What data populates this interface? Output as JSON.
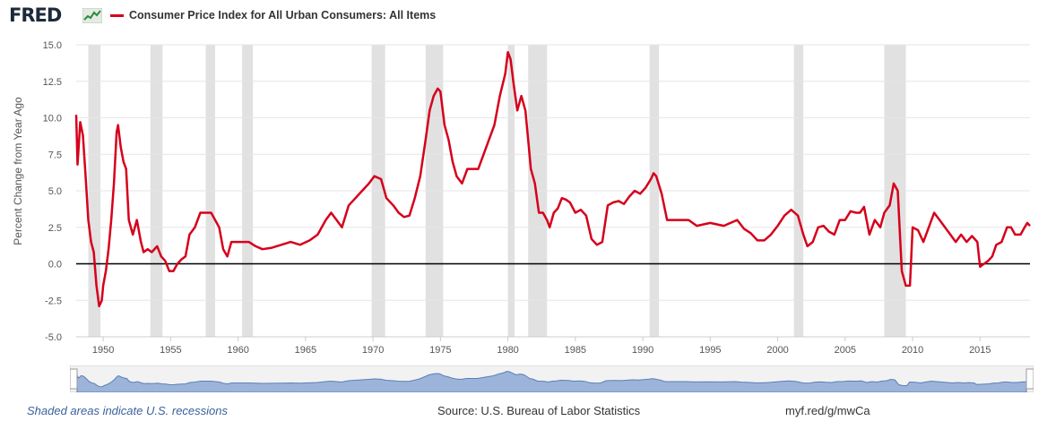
{
  "header": {
    "logo_text": "FRED",
    "title": "Consumer Price Index for All Urban Consumers: All Items"
  },
  "footer": {
    "recession_note": "Shaded areas indicate U.S. recessions",
    "source": "Source: U.S. Bureau of Labor Statistics",
    "short_link": "myf.red/g/mwCa"
  },
  "colors": {
    "series": "#d6001c",
    "recession": "#e1e1e1",
    "navigator_fill": "#7f9fd0"
  },
  "chart_data": {
    "type": "line",
    "title": "Consumer Price Index for All Urban Consumers: All Items",
    "ylabel": "Percent Change from Year Ago",
    "xlabel": "",
    "ylim": [
      -5.0,
      15.0
    ],
    "xlim": [
      1948.0,
      2018.7
    ],
    "yticks": [
      "-5.0",
      "-2.5",
      "0.0",
      "2.5",
      "5.0",
      "7.5",
      "10.0",
      "12.5",
      "15.0"
    ],
    "xticks": [
      "1950",
      "1955",
      "1960",
      "1965",
      "1970",
      "1975",
      "1980",
      "1985",
      "1990",
      "1995",
      "2000",
      "2005",
      "2010",
      "2015"
    ],
    "grid": true,
    "recessions": [
      [
        1948.9,
        1949.8
      ],
      [
        1953.5,
        1954.4
      ],
      [
        1957.6,
        1958.3
      ],
      [
        1960.3,
        1961.1
      ],
      [
        1969.9,
        1970.9
      ],
      [
        1973.9,
        1975.2
      ],
      [
        1980.0,
        1980.5
      ],
      [
        1981.5,
        1982.9
      ],
      [
        1990.5,
        1991.2
      ],
      [
        2001.2,
        2001.9
      ],
      [
        2007.9,
        2009.5
      ]
    ],
    "series": [
      {
        "name": "Consumer Price Index for All Urban Consumers: All Items",
        "x": [
          1948.0,
          1948.1,
          1948.3,
          1948.5,
          1948.7,
          1948.9,
          1949.1,
          1949.3,
          1949.5,
          1949.7,
          1949.9,
          1950.0,
          1950.2,
          1950.4,
          1950.6,
          1950.8,
          1951.0,
          1951.1,
          1951.3,
          1951.5,
          1951.7,
          1951.9,
          1952.2,
          1952.5,
          1952.8,
          1953.0,
          1953.3,
          1953.6,
          1954.0,
          1954.3,
          1954.6,
          1954.9,
          1955.2,
          1955.5,
          1955.8,
          1956.1,
          1956.4,
          1956.8,
          1957.2,
          1957.6,
          1958.0,
          1958.3,
          1958.6,
          1958.9,
          1959.2,
          1959.5,
          1959.8,
          1960.3,
          1960.8,
          1961.3,
          1961.8,
          1962.5,
          1963.2,
          1963.9,
          1964.6,
          1965.3,
          1965.9,
          1966.5,
          1966.9,
          1967.3,
          1967.7,
          1968.2,
          1968.7,
          1969.2,
          1969.7,
          1970.1,
          1970.6,
          1971.0,
          1971.5,
          1971.9,
          1972.3,
          1972.7,
          1973.1,
          1973.5,
          1973.9,
          1974.2,
          1974.5,
          1974.8,
          1975.0,
          1975.3,
          1975.6,
          1975.9,
          1976.2,
          1976.6,
          1977.0,
          1977.4,
          1977.8,
          1978.2,
          1978.6,
          1979.0,
          1979.4,
          1979.8,
          1980.0,
          1980.2,
          1980.4,
          1980.7,
          1981.0,
          1981.3,
          1981.5,
          1981.7,
          1982.0,
          1982.3,
          1982.6,
          1982.9,
          1983.1,
          1983.4,
          1983.7,
          1984.0,
          1984.3,
          1984.6,
          1985.0,
          1985.4,
          1985.8,
          1986.2,
          1986.6,
          1987.0,
          1987.4,
          1987.8,
          1988.2,
          1988.6,
          1989.0,
          1989.4,
          1989.8,
          1990.2,
          1990.6,
          1990.8,
          1991.0,
          1991.4,
          1991.8,
          1992.2,
          1992.8,
          1993.4,
          1994.0,
          1995.0,
          1996.0,
          1997.0,
          1997.5,
          1998.0,
          1998.5,
          1999.0,
          1999.5,
          2000.0,
          2000.5,
          2001.0,
          2001.5,
          2001.9,
          2002.2,
          2002.6,
          2003.0,
          2003.4,
          2003.8,
          2004.2,
          2004.6,
          2005.0,
          2005.4,
          2005.8,
          2006.1,
          2006.4,
          2006.8,
          2007.2,
          2007.6,
          2007.9,
          2008.3,
          2008.6,
          2008.9,
          2009.2,
          2009.5,
          2009.8,
          2010.0,
          2010.4,
          2010.8,
          2011.2,
          2011.6,
          2012.0,
          2012.4,
          2012.8,
          2013.2,
          2013.6,
          2014.0,
          2014.4,
          2014.8,
          2015.0,
          2015.3,
          2015.6,
          2015.9,
          2016.2,
          2016.6,
          2017.0,
          2017.3,
          2017.6,
          2018.0,
          2018.3,
          2018.5,
          2018.7
        ],
        "values": [
          10.2,
          6.8,
          9.7,
          8.8,
          6.0,
          3.0,
          1.5,
          0.8,
          -1.5,
          -2.9,
          -2.5,
          -1.5,
          -0.5,
          1.0,
          3.0,
          5.5,
          9.0,
          9.5,
          8.0,
          7.0,
          6.5,
          3.0,
          2.0,
          3.0,
          1.5,
          0.8,
          1.0,
          0.8,
          1.2,
          0.5,
          0.2,
          -0.5,
          -0.5,
          0.0,
          0.3,
          0.5,
          2.0,
          2.5,
          3.5,
          3.5,
          3.5,
          3.0,
          2.5,
          1.0,
          0.5,
          1.5,
          1.5,
          1.5,
          1.5,
          1.2,
          1.0,
          1.1,
          1.3,
          1.5,
          1.3,
          1.6,
          2.0,
          3.0,
          3.5,
          3.0,
          2.5,
          4.0,
          4.5,
          5.0,
          5.5,
          6.0,
          5.8,
          4.5,
          4.0,
          3.5,
          3.2,
          3.3,
          4.5,
          6.0,
          8.5,
          10.5,
          11.5,
          12.0,
          11.8,
          9.5,
          8.5,
          7.0,
          6.0,
          5.5,
          6.5,
          6.5,
          6.5,
          7.5,
          8.5,
          9.5,
          11.5,
          13.0,
          14.5,
          14.0,
          12.5,
          10.5,
          11.5,
          10.5,
          8.5,
          6.5,
          5.5,
          3.5,
          3.5,
          3.0,
          2.5,
          3.5,
          3.8,
          4.5,
          4.4,
          4.2,
          3.5,
          3.7,
          3.3,
          1.7,
          1.3,
          1.5,
          4.0,
          4.2,
          4.3,
          4.1,
          4.6,
          5.0,
          4.8,
          5.2,
          5.8,
          6.2,
          6.0,
          4.8,
          3.0,
          3.0,
          3.0,
          3.0,
          2.6,
          2.8,
          2.6,
          3.0,
          2.4,
          2.1,
          1.6,
          1.6,
          2.0,
          2.6,
          3.3,
          3.7,
          3.3,
          2.0,
          1.2,
          1.5,
          2.5,
          2.6,
          2.2,
          2.0,
          3.0,
          3.0,
          3.6,
          3.5,
          3.5,
          3.9,
          2.0,
          3.0,
          2.5,
          3.5,
          4.0,
          5.5,
          5.0,
          -0.5,
          -1.5,
          -1.5,
          2.5,
          2.3,
          1.5,
          2.5,
          3.5,
          3.0,
          2.5,
          2.0,
          1.5,
          2.0,
          1.5,
          1.9,
          1.5,
          -0.2,
          0.0,
          0.2,
          0.5,
          1.3,
          1.5,
          2.5,
          2.5,
          2.0,
          2.0,
          2.5,
          2.8,
          2.6
        ]
      }
    ]
  }
}
